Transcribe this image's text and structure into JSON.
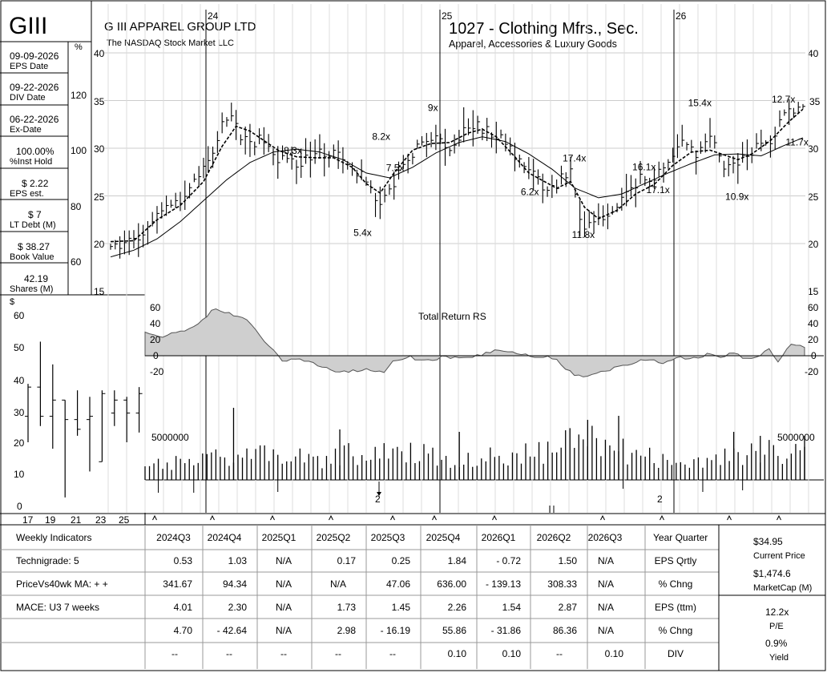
{
  "header": {
    "ticker": "GIII",
    "company": "G III APPAREL GROUP LTD",
    "exchange": "The NASDAQ Stock Market LLC",
    "industry": "1027 - Clothing Mfrs., Sec.",
    "sector": "Apparel, Accessories & Luxury Goods"
  },
  "sidebar": [
    {
      "value": "09-09-2026",
      "label": "EPS Date"
    },
    {
      "value": "09-22-2026",
      "label": "DIV Date"
    },
    {
      "value": "06-22-2026",
      "label": "Ex-Date"
    },
    {
      "value": "100.00%",
      "label": "%Inst Hold"
    },
    {
      "value": "$ 2.22",
      "label": "EPS est."
    },
    {
      "value": "$ 7",
      "label": "LT Debt (M)"
    },
    {
      "value": "$ 38.27",
      "label": "Book Value"
    },
    {
      "value": "42.19",
      "label": "Shares (M)"
    }
  ],
  "pct_axis": {
    "symbol": "%",
    "ticks": [
      "120",
      "100",
      "80",
      "60"
    ]
  },
  "price_axis": {
    "ticks": [
      "40",
      "35",
      "30",
      "25",
      "20",
      "15"
    ]
  },
  "year_markers": [
    "24",
    "25",
    "26"
  ],
  "pe_labels": [
    "8.3x",
    "8.2x",
    "9x",
    "7.5x",
    "5.4x",
    "6.2x",
    "17.4x",
    "11.8x",
    "16.1x",
    "17.1x",
    "15.4x",
    "10.9x",
    "12.7x",
    "11.7x"
  ],
  "rs_panel": {
    "title": "Total Return RS",
    "ticks": [
      "60",
      "40",
      "20",
      "0",
      "-20"
    ]
  },
  "volume_panel": {
    "label": "5000000",
    "markers": [
      "2",
      "2"
    ]
  },
  "annual_inset": {
    "ylabel": "$",
    "yticks": [
      "60",
      "50",
      "40",
      "30",
      "20",
      "10",
      "0"
    ],
    "xticks": [
      "17",
      "19",
      "21",
      "23",
      "25"
    ]
  },
  "table": {
    "row_labels": [
      "Weekly Indicators",
      "Technigrade: 5",
      "PriceVs40wk MA:  + +",
      "MACE: U3  7 weeks",
      ""
    ],
    "quarters": [
      "2024Q3",
      "2024Q4",
      "2025Q1",
      "2025Q2",
      "2025Q3",
      "2025Q4",
      "2026Q1",
      "2026Q2",
      "2026Q3"
    ],
    "rows": [
      {
        "label": "EPS Qrtly",
        "values": [
          "0.53",
          "1.03",
          "N/A",
          "0.17",
          "0.25",
          "1.84",
          "- 0.72",
          "1.50",
          "N/A"
        ]
      },
      {
        "label": "% Chng",
        "values": [
          "341.67",
          "94.34",
          "N/A",
          "N/A",
          "47.06",
          "636.00",
          "- 139.13",
          "308.33",
          "N/A"
        ]
      },
      {
        "label": "EPS (ttm)",
        "values": [
          "4.01",
          "2.30",
          "N/A",
          "1.73",
          "1.45",
          "2.26",
          "1.54",
          "2.87",
          "N/A"
        ]
      },
      {
        "label": "% Chng",
        "values": [
          "4.70",
          "- 42.64",
          "N/A",
          "2.98",
          "- 16.19",
          "55.86",
          "- 31.86",
          "86.36",
          "N/A"
        ]
      },
      {
        "label": "DIV",
        "values": [
          "--",
          "--",
          "--",
          "--",
          "--",
          "0.10",
          "0.10",
          "--",
          "0.10"
        ]
      }
    ],
    "year_quarter_header": "Year Quarter",
    "stats": [
      {
        "value": "$34.95",
        "label": "Current Price"
      },
      {
        "value": "$1,474.6",
        "label": "MarketCap (M)"
      },
      {
        "value": "12.2x",
        "label": "P/E"
      },
      {
        "value": "0.9%",
        "label": "Yield"
      }
    ]
  },
  "chart_data": {
    "type": "ohlc",
    "ylim": [
      15,
      40
    ],
    "weeks": 150,
    "price_path": [
      [
        0,
        20
      ],
      [
        3,
        19.7
      ],
      [
        6,
        20.6
      ],
      [
        9,
        22.3
      ],
      [
        12,
        24
      ],
      [
        15,
        24.4
      ],
      [
        18,
        26.5
      ],
      [
        21,
        28.3
      ],
      [
        24,
        32.8
      ],
      [
        26,
        33
      ],
      [
        29,
        30.7
      ],
      [
        33,
        30.8
      ],
      [
        36,
        29
      ],
      [
        39,
        28.4
      ],
      [
        43,
        29
      ],
      [
        46,
        29.7
      ],
      [
        49,
        29.3
      ],
      [
        52,
        27.4
      ],
      [
        55,
        26.9
      ],
      [
        57,
        24.2
      ],
      [
        60,
        25.5
      ],
      [
        63,
        28.5
      ],
      [
        66,
        30
      ],
      [
        70,
        31
      ],
      [
        73,
        29.5
      ],
      [
        76,
        32.1
      ],
      [
        79,
        32.4
      ],
      [
        82,
        31.7
      ],
      [
        85,
        30.4
      ],
      [
        88,
        28.4
      ],
      [
        91,
        27.4
      ],
      [
        93,
        25.4
      ],
      [
        96,
        26.3
      ],
      [
        99,
        27.6
      ],
      [
        101,
        22.1
      ],
      [
        103,
        21.7
      ],
      [
        106,
        22.5
      ],
      [
        108,
        23.8
      ],
      [
        111,
        25
      ],
      [
        114,
        26.7
      ],
      [
        117,
        26.7
      ],
      [
        120,
        28.2
      ],
      [
        123,
        30.4
      ],
      [
        126,
        29.3
      ],
      [
        129,
        30.9
      ],
      [
        132,
        28.3
      ],
      [
        135,
        28.2
      ],
      [
        138,
        29.8
      ],
      [
        141,
        30.2
      ],
      [
        143,
        31.7
      ],
      [
        145,
        34.2
      ],
      [
        147,
        33.7
      ],
      [
        149,
        34.95
      ]
    ],
    "ma10": [
      [
        0,
        20.2
      ],
      [
        5,
        20.3
      ],
      [
        10,
        22.5
      ],
      [
        15,
        24
      ],
      [
        20,
        26.5
      ],
      [
        24,
        30.2
      ],
      [
        27,
        32.3
      ],
      [
        30,
        31.8
      ],
      [
        33,
        30.8
      ],
      [
        36,
        29.8
      ],
      [
        40,
        29.1
      ],
      [
        44,
        29
      ],
      [
        48,
        29
      ],
      [
        52,
        28
      ],
      [
        55,
        26.3
      ],
      [
        58,
        25.3
      ],
      [
        61,
        27.4
      ],
      [
        65,
        29.8
      ],
      [
        69,
        30.5
      ],
      [
        73,
        30.6
      ],
      [
        77,
        31.6
      ],
      [
        80,
        32
      ],
      [
        83,
        31.2
      ],
      [
        87,
        29.1
      ],
      [
        90,
        27.4
      ],
      [
        93,
        26.6
      ],
      [
        96,
        25.8
      ],
      [
        99,
        26.5
      ],
      [
        102,
        23.8
      ],
      [
        105,
        22.6
      ],
      [
        109,
        23.5
      ],
      [
        113,
        25.2
      ],
      [
        117,
        26.2
      ],
      [
        121,
        28.2
      ],
      [
        125,
        29.6
      ],
      [
        129,
        29.8
      ],
      [
        132,
        29.3
      ],
      [
        135,
        28.8
      ],
      [
        138,
        29.4
      ],
      [
        142,
        30.8
      ],
      [
        146,
        32.8
      ],
      [
        149,
        34.1
      ]
    ],
    "ma40": [
      [
        0,
        18.6
      ],
      [
        5,
        19.3
      ],
      [
        10,
        20.5
      ],
      [
        15,
        22.3
      ],
      [
        20,
        24.5
      ],
      [
        25,
        26.7
      ],
      [
        30,
        28.5
      ],
      [
        35,
        29.6
      ],
      [
        40,
        29.9
      ],
      [
        45,
        29.6
      ],
      [
        50,
        28.8
      ],
      [
        55,
        27.4
      ],
      [
        60,
        26.9
      ],
      [
        65,
        28
      ],
      [
        70,
        29.5
      ],
      [
        75,
        30.6
      ],
      [
        80,
        31.2
      ],
      [
        85,
        30.7
      ],
      [
        90,
        29.4
      ],
      [
        95,
        27.8
      ],
      [
        100,
        25.8
      ],
      [
        105,
        24.8
      ],
      [
        110,
        25.2
      ],
      [
        115,
        26.3
      ],
      [
        120,
        27.4
      ],
      [
        125,
        28.4
      ],
      [
        130,
        29.3
      ],
      [
        135,
        29.4
      ],
      [
        140,
        29.2
      ],
      [
        145,
        30.3
      ],
      [
        149,
        31.1
      ]
    ],
    "rs_points": [
      [
        0,
        30
      ],
      [
        4,
        24
      ],
      [
        8,
        30
      ],
      [
        12,
        40
      ],
      [
        16,
        60
      ],
      [
        19,
        53
      ],
      [
        22,
        48
      ],
      [
        25,
        34
      ],
      [
        28,
        12
      ],
      [
        31,
        -6
      ],
      [
        35,
        -3
      ],
      [
        38,
        -10
      ],
      [
        42,
        -18
      ],
      [
        46,
        -20
      ],
      [
        50,
        -18
      ],
      [
        54,
        -20
      ],
      [
        56,
        -8
      ],
      [
        58,
        -5
      ],
      [
        60,
        -2
      ],
      [
        63,
        -6
      ],
      [
        67,
        -2
      ],
      [
        70,
        -3
      ],
      [
        73,
        -4
      ],
      [
        76,
        2
      ],
      [
        79,
        6
      ],
      [
        82,
        5
      ],
      [
        85,
        2
      ],
      [
        88,
        -3
      ],
      [
        91,
        -2
      ],
      [
        93,
        -6
      ],
      [
        95,
        -18
      ],
      [
        98,
        -25
      ],
      [
        101,
        -24
      ],
      [
        104,
        -19
      ],
      [
        107,
        -13
      ],
      [
        111,
        -8
      ],
      [
        114,
        -5
      ],
      [
        117,
        -8
      ],
      [
        120,
        -2
      ],
      [
        123,
        -5
      ],
      [
        127,
        2
      ],
      [
        130,
        -3
      ],
      [
        133,
        5
      ],
      [
        136,
        -5
      ],
      [
        139,
        1
      ],
      [
        141,
        7
      ],
      [
        143,
        -8
      ],
      [
        146,
        14
      ],
      [
        149,
        10
      ]
    ],
    "pe_points": [
      [
        39,
        29.4,
        "8.3x"
      ],
      [
        58,
        30.9,
        "8.2x"
      ],
      [
        70,
        33.9,
        "9x"
      ],
      [
        61,
        27.6,
        "7.5x"
      ],
      [
        54,
        20.8,
        "5.4x"
      ],
      [
        90,
        25.1,
        "6.2x"
      ],
      [
        99,
        28.6,
        "17.4x"
      ],
      [
        101,
        20.6,
        "11.8x"
      ],
      [
        114,
        27.7,
        "16.1x"
      ],
      [
        117,
        25.3,
        "17.1x"
      ],
      [
        126,
        34.4,
        "15.4x"
      ],
      [
        134,
        24.6,
        "10.9x"
      ],
      [
        144,
        34.8,
        "12.7x"
      ],
      [
        147,
        30.3,
        "11.7x"
      ]
    ],
    "volume_level": [
      [
        0,
        0.3
      ],
      [
        10,
        0.35
      ],
      [
        20,
        0.5
      ],
      [
        30,
        0.45
      ],
      [
        40,
        0.4
      ],
      [
        50,
        0.55
      ],
      [
        55,
        0.5
      ],
      [
        60,
        0.55
      ],
      [
        70,
        0.4
      ],
      [
        80,
        0.45
      ],
      [
        90,
        0.55
      ],
      [
        100,
        0.8
      ],
      [
        110,
        0.5
      ],
      [
        120,
        0.35
      ],
      [
        130,
        0.4
      ],
      [
        140,
        0.6
      ],
      [
        149,
        0.45
      ]
    ],
    "annual_bars": [
      {
        "year": 17,
        "high": 38,
        "low": 20,
        "open": 28,
        "close": 37
      },
      {
        "year": 18,
        "high": 51,
        "low": 25,
        "open": 37,
        "close": 28
      },
      {
        "year": 19,
        "high": 44,
        "low": 18,
        "open": 28,
        "close": 33
      },
      {
        "year": 20,
        "high": 33,
        "low": 3,
        "open": 33,
        "close": 27
      },
      {
        "year": 21,
        "high": 36,
        "low": 22,
        "open": 27,
        "close": 24
      },
      {
        "year": 22,
        "high": 34,
        "low": 11,
        "open": 27,
        "close": 28
      },
      {
        "year": 23,
        "high": 36,
        "low": 14,
        "open": 14,
        "close": 35
      },
      {
        "year": 24,
        "high": 36,
        "low": 25,
        "open": 29,
        "close": 33
      },
      {
        "year": 25,
        "high": 34,
        "low": 20,
        "open": 33,
        "close": 29
      },
      {
        "year": 26,
        "high": 37,
        "low": 23,
        "open": 29,
        "close": 35
      }
    ]
  }
}
